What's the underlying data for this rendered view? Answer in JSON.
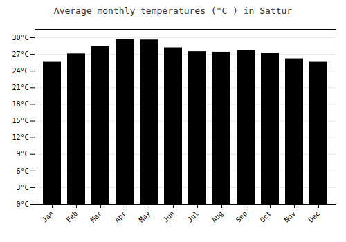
{
  "chart_data": {
    "type": "bar",
    "title": "Average monthly temperatures (°C ) in Sattur",
    "categories": [
      "Jan",
      "Feb",
      "Mar",
      "Apr",
      "May",
      "Jun",
      "Jul",
      "Aug",
      "Sep",
      "Oct",
      "Nov",
      "Dec"
    ],
    "values": [
      25.7,
      27.1,
      28.4,
      29.7,
      29.6,
      28.2,
      27.5,
      27.4,
      27.7,
      27.2,
      26.2,
      25.7
    ],
    "ylim": [
      0,
      31.5
    ],
    "yticks": [
      {
        "value": 0,
        "label": "0°C"
      },
      {
        "value": 3,
        "label": "3°C"
      },
      {
        "value": 6,
        "label": "6°C"
      },
      {
        "value": 9,
        "label": "9°C"
      },
      {
        "value": 12,
        "label": "12°C"
      },
      {
        "value": 15,
        "label": "15°C"
      },
      {
        "value": 18,
        "label": "18°C"
      },
      {
        "value": 21,
        "label": "21°C"
      },
      {
        "value": 24,
        "label": "24°C"
      },
      {
        "value": 27,
        "label": "27°C"
      },
      {
        "value": 30,
        "label": "30°C"
      }
    ],
    "grid": true
  }
}
